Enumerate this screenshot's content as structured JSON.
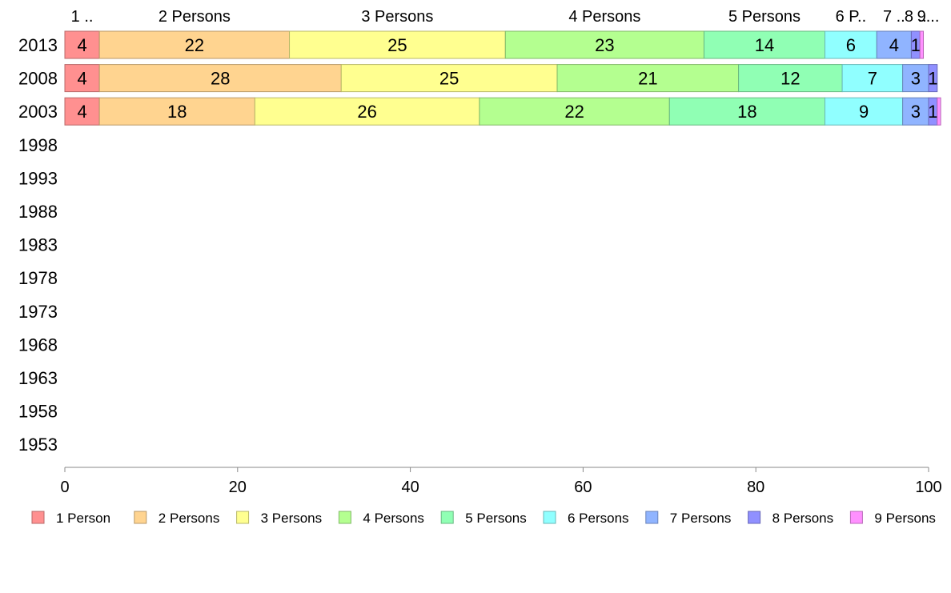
{
  "chart_data": {
    "type": "bar",
    "orientation": "horizontal",
    "stacked": true,
    "title": "",
    "xlabel": "",
    "ylabel": "",
    "xlim": [
      0,
      100
    ],
    "x_ticks": [
      "0",
      "20",
      "40",
      "60",
      "80",
      "100"
    ],
    "categories": [
      "2013",
      "2008",
      "2003",
      "1998",
      "1993",
      "1988",
      "1983",
      "1978",
      "1973",
      "1968",
      "1963",
      "1958",
      "1953"
    ],
    "top_labels": [
      "1 ..",
      "2 Persons",
      "3 Persons",
      "4 Persons",
      "5 Persons",
      "6 P..",
      "7 ..",
      "8 ..",
      "9..."
    ],
    "series": [
      {
        "name": "1 Person",
        "color": "#ff9090",
        "values": [
          4,
          4,
          4,
          null,
          null,
          null,
          null,
          null,
          null,
          null,
          null,
          null,
          null
        ],
        "labels": [
          "4",
          "4",
          "4"
        ]
      },
      {
        "name": "2 Persons",
        "color": "#ffd490",
        "values": [
          22,
          28,
          18,
          null,
          null,
          null,
          null,
          null,
          null,
          null,
          null,
          null,
          null
        ],
        "labels": [
          "22",
          "28",
          "18"
        ]
      },
      {
        "name": "3 Persons",
        "color": "#ffff90",
        "values": [
          25,
          25,
          26,
          null,
          null,
          null,
          null,
          null,
          null,
          null,
          null,
          null,
          null
        ],
        "labels": [
          "25",
          "25",
          "26"
        ]
      },
      {
        "name": "4 Persons",
        "color": "#b4ff90",
        "values": [
          23,
          21,
          22,
          null,
          null,
          null,
          null,
          null,
          null,
          null,
          null,
          null,
          null
        ],
        "labels": [
          "23",
          "21",
          "22"
        ]
      },
      {
        "name": "5 Persons",
        "color": "#90ffb4",
        "values": [
          14,
          12,
          18,
          null,
          null,
          null,
          null,
          null,
          null,
          null,
          null,
          null,
          null
        ],
        "labels": [
          "14",
          "12",
          "18"
        ]
      },
      {
        "name": "6 Persons",
        "color": "#90ffff",
        "values": [
          6,
          7,
          9,
          null,
          null,
          null,
          null,
          null,
          null,
          null,
          null,
          null,
          null
        ],
        "labels": [
          "6",
          "7",
          "9"
        ]
      },
      {
        "name": "7 Persons",
        "color": "#90b4ff",
        "values": [
          4,
          3,
          3,
          null,
          null,
          null,
          null,
          null,
          null,
          null,
          null,
          null,
          null
        ],
        "labels": [
          "4",
          "3",
          "3"
        ]
      },
      {
        "name": "8 Persons",
        "color": "#9090ff",
        "values": [
          1,
          1,
          1,
          null,
          null,
          null,
          null,
          null,
          null,
          null,
          null,
          null,
          null
        ],
        "labels": [
          "1",
          "1",
          "1"
        ]
      },
      {
        "name": "9 Persons",
        "color": "#ff90ff",
        "values": [
          0.4,
          0,
          0.4,
          null,
          null,
          null,
          null,
          null,
          null,
          null,
          null,
          null,
          null
        ],
        "labels": [
          "",
          "",
          ""
        ]
      }
    ],
    "grid": false,
    "legend": "bottom"
  }
}
